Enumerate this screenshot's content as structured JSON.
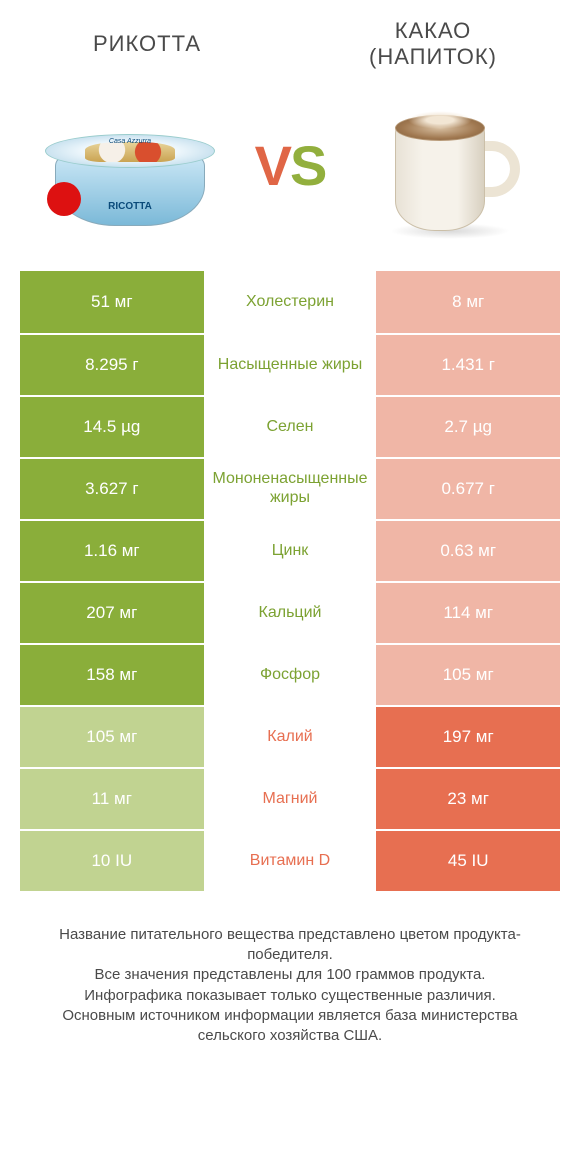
{
  "titles": {
    "left": "РИКОТТА",
    "right_line1": "КАКАО",
    "right_line2": "(НАПИТОК)"
  },
  "vs": {
    "v": "V",
    "s": "S"
  },
  "ricotta_label": "RICOTTA",
  "ricotta_brand": "Casa Azzurra",
  "colors": {
    "green_win": "#8aae3a",
    "green_lose": "#c1d391",
    "orange_win": "#e76f51",
    "orange_lose": "#f0b6a6",
    "mid_green": "#7ca232",
    "mid_orange": "#e76f51",
    "background": "#ffffff"
  },
  "table": {
    "left_winner_color": "green",
    "right_winner_color": "orange",
    "rows": [
      {
        "label": "Холестерин",
        "left": "51 мг",
        "right": "8 мг",
        "winner": "left"
      },
      {
        "label": "Насыщенные жиры",
        "left": "8.295 г",
        "right": "1.431 г",
        "winner": "left"
      },
      {
        "label": "Селен",
        "left": "14.5 µg",
        "right": "2.7 µg",
        "winner": "left"
      },
      {
        "label": "Мононенасыщенные жиры",
        "left": "3.627 г",
        "right": "0.677 г",
        "winner": "left"
      },
      {
        "label": "Цинк",
        "left": "1.16 мг",
        "right": "0.63 мг",
        "winner": "left"
      },
      {
        "label": "Кальций",
        "left": "207 мг",
        "right": "114 мг",
        "winner": "left"
      },
      {
        "label": "Фосфор",
        "left": "158 мг",
        "right": "105 мг",
        "winner": "left"
      },
      {
        "label": "Калий",
        "left": "105 мг",
        "right": "197 мг",
        "winner": "right"
      },
      {
        "label": "Магний",
        "left": "11 мг",
        "right": "23 мг",
        "winner": "right"
      },
      {
        "label": "Витамин D",
        "left": "10 IU",
        "right": "45 IU",
        "winner": "right"
      }
    ]
  },
  "footnote": "Название питательного вещества представлено цветом продукта-победителя.\nВсе значения представлены для 100 граммов продукта.\nИнфографика показывает только существенные различия.\nОсновным источником информации является база министерства сельского хозяйства США."
}
